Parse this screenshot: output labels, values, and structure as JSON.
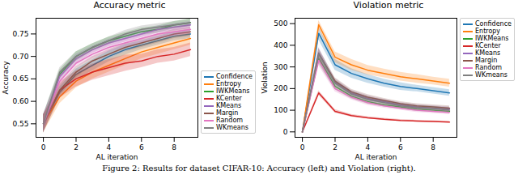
{
  "chart_data": [
    {
      "type": "line",
      "title": "Accuracy metric",
      "x_label": "AL iteration",
      "y_label": "Accuracy",
      "x": [
        0,
        1,
        2,
        3,
        4,
        5,
        6,
        7,
        8,
        9
      ],
      "xlim": [
        -0.45,
        9.45
      ],
      "xticks": [
        0,
        2,
        4,
        6,
        8
      ],
      "ylim": [
        0.52,
        0.785
      ],
      "yticks": [
        0.55,
        {
          "value": 0.6,
          "label": "0.60"
        },
        0.65,
        {
          "value": 0.7,
          "label": "0.70"
        },
        0.75
      ],
      "grid": false,
      "legend": "lower right",
      "series": [
        {
          "name": "Confidence",
          "color": "#1f77b4",
          "values": [
            0.55,
            0.62,
            0.66,
            0.68,
            0.7,
            0.715,
            0.725,
            0.735,
            0.745,
            0.75
          ],
          "error": [
            0.02,
            0.012,
            0.012,
            0.012,
            0.012,
            0.012,
            0.01,
            0.01,
            0.01,
            0.01
          ]
        },
        {
          "name": "Entropy",
          "color": "#ff7f0e",
          "values": [
            0.55,
            0.61,
            0.645,
            0.665,
            0.68,
            0.695,
            0.71,
            0.72,
            0.73,
            0.74
          ],
          "error": [
            0.02,
            0.015,
            0.015,
            0.015,
            0.015,
            0.015,
            0.015,
            0.015,
            0.015,
            0.015
          ]
        },
        {
          "name": "IWKMeans",
          "color": "#2ca02c",
          "values": [
            0.55,
            0.66,
            0.7,
            0.72,
            0.735,
            0.745,
            0.755,
            0.76,
            0.77,
            0.775
          ],
          "error": [
            0.02,
            0.01,
            0.01,
            0.008,
            0.008,
            0.008,
            0.008,
            0.008,
            0.008,
            0.008
          ]
        },
        {
          "name": "KCenter",
          "color": "#d62728",
          "values": [
            0.55,
            0.625,
            0.65,
            0.665,
            0.675,
            0.685,
            0.69,
            0.7,
            0.705,
            0.715
          ],
          "error": [
            0.02,
            0.018,
            0.018,
            0.018,
            0.018,
            0.018,
            0.015,
            0.015,
            0.015,
            0.015
          ]
        },
        {
          "name": "KMeans",
          "color": "#9467bd",
          "values": [
            0.55,
            0.655,
            0.695,
            0.715,
            0.73,
            0.74,
            0.75,
            0.76,
            0.765,
            0.77
          ],
          "error": [
            0.02,
            0.01,
            0.01,
            0.008,
            0.008,
            0.008,
            0.008,
            0.008,
            0.008,
            0.008
          ]
        },
        {
          "name": "Margin",
          "color": "#8c564b",
          "values": [
            0.55,
            0.625,
            0.665,
            0.69,
            0.705,
            0.72,
            0.73,
            0.74,
            0.75,
            0.755
          ],
          "error": [
            0.02,
            0.012,
            0.012,
            0.01,
            0.01,
            0.01,
            0.01,
            0.01,
            0.01,
            0.01
          ]
        },
        {
          "name": "Random",
          "color": "#e377c2",
          "values": [
            0.55,
            0.645,
            0.685,
            0.705,
            0.72,
            0.73,
            0.74,
            0.75,
            0.755,
            0.76
          ],
          "error": [
            0.02,
            0.012,
            0.01,
            0.01,
            0.01,
            0.01,
            0.01,
            0.01,
            0.01,
            0.01
          ]
        },
        {
          "name": "WKmeans",
          "color": "#7f7f7f",
          "values": [
            0.55,
            0.665,
            0.7,
            0.72,
            0.735,
            0.75,
            0.76,
            0.765,
            0.77,
            0.775
          ],
          "error": [
            0.02,
            0.01,
            0.01,
            0.008,
            0.008,
            0.008,
            0.008,
            0.008,
            0.008,
            0.008
          ]
        }
      ]
    },
    {
      "type": "line",
      "title": "Violation metric",
      "x_label": "AL iteration",
      "y_label": "Violation",
      "x": [
        0,
        1,
        2,
        3,
        4,
        5,
        6,
        7,
        8,
        9
      ],
      "xlim": [
        -0.45,
        9.45
      ],
      "xticks": [
        0,
        2,
        4,
        6,
        8
      ],
      "ylim": [
        -25,
        525
      ],
      "yticks": [
        0,
        100,
        200,
        300,
        400,
        500
      ],
      "grid": false,
      "legend": "upper right",
      "series": [
        {
          "name": "Confidence",
          "color": "#1f77b4",
          "values": [
            0,
            455,
            310,
            270,
            245,
            225,
            210,
            200,
            190,
            180
          ],
          "error": [
            0,
            30,
            25,
            22,
            20,
            18,
            18,
            15,
            15,
            15
          ]
        },
        {
          "name": "Entropy",
          "color": "#ff7f0e",
          "values": [
            0,
            495,
            345,
            310,
            285,
            270,
            255,
            245,
            235,
            225
          ],
          "error": [
            0,
            20,
            25,
            25,
            22,
            20,
            20,
            20,
            18,
            18
          ]
        },
        {
          "name": "IWKMeans",
          "color": "#2ca02c",
          "values": [
            0,
            340,
            210,
            165,
            140,
            125,
            115,
            105,
            100,
            95
          ],
          "error": [
            0,
            25,
            15,
            12,
            12,
            10,
            10,
            10,
            10,
            10
          ]
        },
        {
          "name": "KCenter",
          "color": "#d62728",
          "values": [
            0,
            180,
            95,
            75,
            65,
            58,
            53,
            50,
            48,
            45
          ],
          "error": [
            0,
            10,
            8,
            6,
            5,
            5,
            4,
            4,
            4,
            4
          ]
        },
        {
          "name": "KMeans",
          "color": "#9467bd",
          "values": [
            0,
            365,
            230,
            180,
            155,
            140,
            125,
            115,
            110,
            105
          ],
          "error": [
            0,
            25,
            15,
            12,
            12,
            10,
            10,
            10,
            10,
            10
          ]
        },
        {
          "name": "Margin",
          "color": "#8c564b",
          "values": [
            0,
            360,
            235,
            185,
            160,
            145,
            130,
            120,
            115,
            110
          ],
          "error": [
            0,
            25,
            15,
            12,
            12,
            10,
            10,
            10,
            10,
            10
          ]
        },
        {
          "name": "Random",
          "color": "#e377c2",
          "values": [
            0,
            330,
            200,
            160,
            135,
            120,
            110,
            100,
            95,
            90
          ],
          "error": [
            0,
            25,
            15,
            12,
            12,
            10,
            10,
            10,
            10,
            10
          ]
        },
        {
          "name": "WKmeans",
          "color": "#7f7f7f",
          "values": [
            0,
            360,
            225,
            175,
            150,
            135,
            120,
            112,
            108,
            100
          ],
          "error": [
            0,
            25,
            15,
            12,
            12,
            10,
            10,
            10,
            10,
            10
          ]
        }
      ]
    }
  ],
  "caption": "Figure 2: Results for dataset CIFAR-10: Accuracy (left) and Violation (right)."
}
